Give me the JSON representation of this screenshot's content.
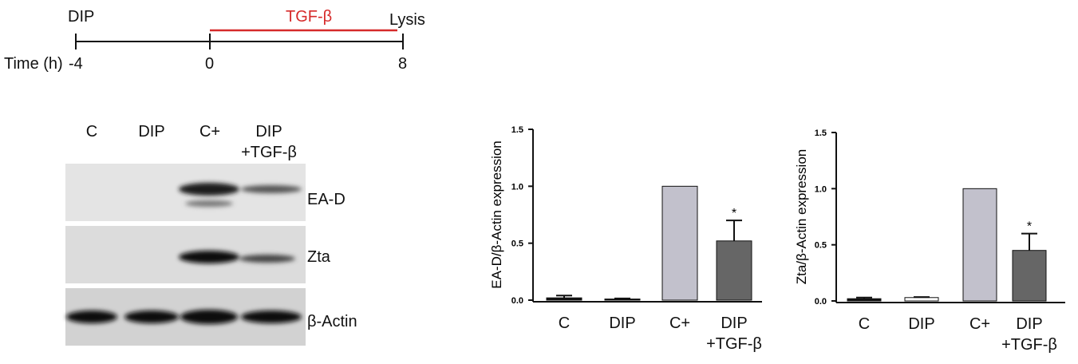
{
  "timeline": {
    "start_label": "DIP",
    "treatment_label": "TGF-β",
    "end_label": "Lysis",
    "axis_label": "Time (h)",
    "ticks": [
      "-4",
      "0",
      "8"
    ]
  },
  "blot": {
    "lanes": [
      "C",
      "DIP",
      "C+",
      "DIP\n+TGF-β"
    ],
    "rows": [
      "EA-D",
      "Zta",
      "β-Actin"
    ]
  },
  "chart_data": [
    {
      "type": "bar",
      "y_label": "EA-D/β-Actin expression",
      "categories": [
        "C",
        "DIP",
        "C+",
        "DIP\n+TGF-β"
      ],
      "values": [
        0.02,
        0.01,
        1.0,
        0.52
      ],
      "errors": [
        0.02,
        0.005,
        0,
        0.18
      ],
      "colors": [
        "#111111",
        "#111111",
        "#c2c1cc",
        "#666666"
      ],
      "annotation": "*",
      "ylim": [
        0,
        1.5
      ],
      "yticks": [
        {
          "value": 0,
          "label": "0.0"
        },
        {
          "value": 0.5,
          "label": "0.5"
        },
        {
          "value": 1,
          "label": "1.0"
        },
        {
          "value": 1.5,
          "label": "1.5"
        }
      ]
    },
    {
      "type": "bar",
      "y_label": "Zta/β-Actin expression",
      "categories": [
        "C",
        "DIP",
        "C+",
        "DIP\n+TGF-β"
      ],
      "values": [
        0.02,
        0.03,
        1.0,
        0.45
      ],
      "errors": [
        0.01,
        0.005,
        0,
        0.15
      ],
      "colors": [
        "#111111",
        "#ffffff",
        "#c2c1cc",
        "#666666"
      ],
      "annotation": "*",
      "ylim": [
        0,
        1.5
      ],
      "yticks": [
        {
          "value": 0,
          "label": "0.0"
        },
        {
          "value": 0.5,
          "label": "0.5"
        },
        {
          "value": 1,
          "label": "1.0"
        },
        {
          "value": 1.5,
          "label": "1.5"
        }
      ]
    }
  ]
}
